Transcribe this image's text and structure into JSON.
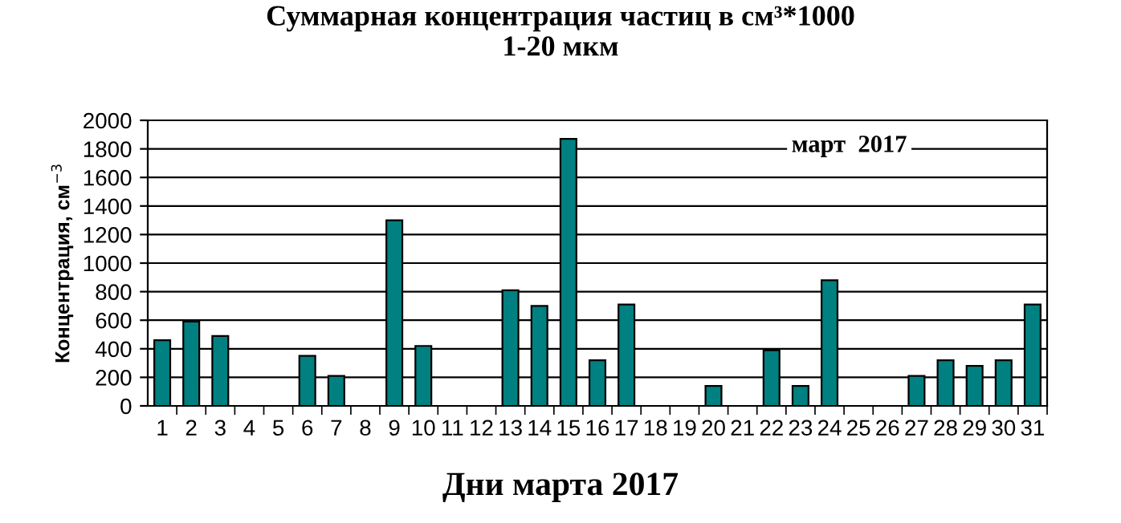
{
  "chart_data": {
    "type": "bar",
    "title": "Суммарная концентрация частиц в см³*1000\n1-20 мкм",
    "xlabel": "Дни марта 2017",
    "ylabel": "Концентрация, см$^{−3}$",
    "annotations": [
      "март  2017"
    ],
    "categories": [
      "1",
      "2",
      "3",
      "4",
      "5",
      "6",
      "7",
      "8",
      "9",
      "10",
      "11",
      "12",
      "13",
      "14",
      "15",
      "16",
      "17",
      "18",
      "19",
      "20",
      "21",
      "22",
      "23",
      "24",
      "25",
      "26",
      "27",
      "28",
      "29",
      "30",
      "31"
    ],
    "values": [
      460,
      590,
      490,
      null,
      null,
      350,
      210,
      null,
      1300,
      420,
      null,
      null,
      810,
      700,
      1870,
      320,
      710,
      null,
      null,
      140,
      null,
      390,
      140,
      880,
      null,
      null,
      210,
      320,
      280,
      320,
      710
    ],
    "color": "#008080",
    "ylim": [
      0,
      2000
    ],
    "yticks": [
      0,
      200,
      400,
      600,
      800,
      1000,
      1200,
      1400,
      1600,
      1800,
      2000
    ],
    "grid": "y"
  }
}
